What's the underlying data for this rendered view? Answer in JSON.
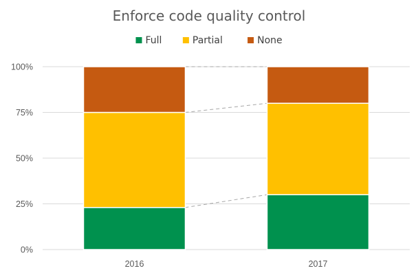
{
  "chart_data": {
    "type": "bar",
    "stacked": true,
    "normalized": true,
    "title": "Enforce code quality control",
    "categories": [
      "2016",
      "2017"
    ],
    "series": [
      {
        "name": "Full",
        "color": "#00914e",
        "values": [
          23,
          30
        ]
      },
      {
        "name": "Partial",
        "color": "#ffc000",
        "values": [
          52,
          50
        ]
      },
      {
        "name": "None",
        "color": "#c55a11",
        "values": [
          25,
          20
        ]
      }
    ],
    "y_ticks": [
      "0%",
      "25%",
      "50%",
      "75%",
      "100%"
    ],
    "ylim": [
      0,
      100
    ],
    "grid": true,
    "legend_position": "top",
    "series_connector_lines": true
  }
}
